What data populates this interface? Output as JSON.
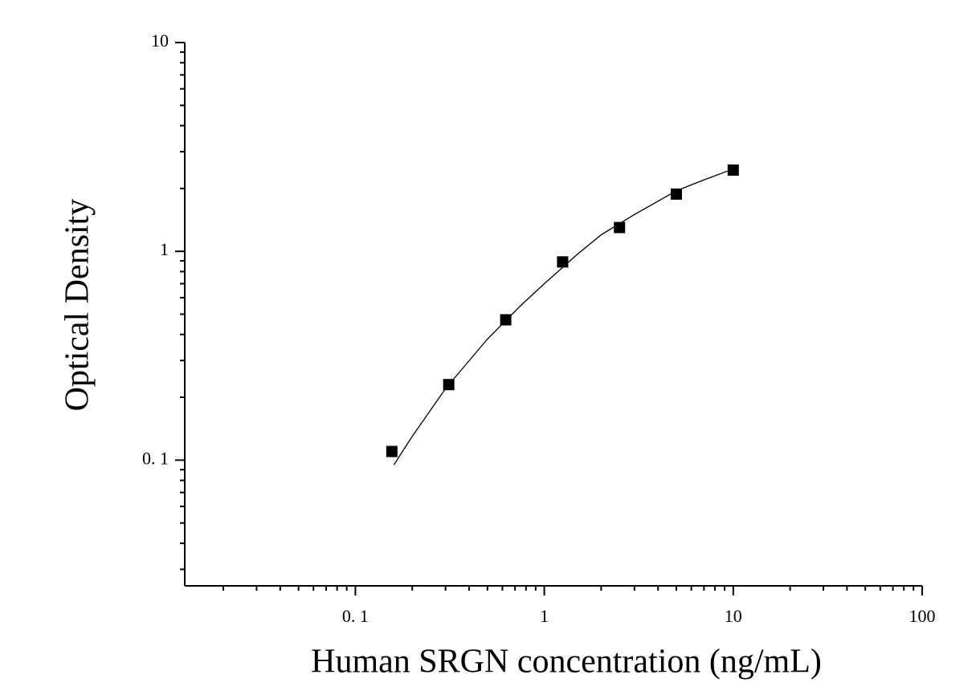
{
  "chart_data": {
    "type": "scatter",
    "x_label": "Human SRGN concentration (ng/mL)",
    "y_label": "Optical Density",
    "log_x": true,
    "log_y": true,
    "xlim": [
      0.0125,
      100
    ],
    "ylim": [
      0.025,
      10
    ],
    "xticks": [
      {
        "value": 0.1,
        "label": "0. 1"
      },
      1,
      10,
      100
    ],
    "yticks": [
      {
        "value": 0.1,
        "label": "0. 1"
      },
      1,
      10
    ],
    "xminorticks": [
      0.02,
      0.03,
      0.04,
      0.05,
      0.06,
      0.07,
      0.08,
      0.09,
      0.2,
      0.3,
      0.4,
      0.5,
      0.6,
      0.7,
      0.8,
      0.9,
      2,
      3,
      4,
      5,
      6,
      7,
      8,
      9,
      20,
      30,
      40,
      50,
      60,
      70,
      80,
      90
    ],
    "yminorticks": [
      0.03,
      0.04,
      0.05,
      0.06,
      0.07,
      0.08,
      0.09,
      0.2,
      0.3,
      0.4,
      0.5,
      0.6,
      0.7,
      0.8,
      0.9,
      2,
      3,
      4,
      5,
      6,
      7,
      8,
      9
    ],
    "series": [
      {
        "color": "#000000",
        "x": [
          0.156,
          0.312,
          0.625,
          1.25,
          2.5,
          5,
          10
        ],
        "values": [
          0.11,
          0.23,
          0.47,
          0.89,
          1.3,
          1.88,
          2.45
        ]
      },
      {
        "color": "#000000",
        "line": true,
        "x": [
          0.16,
          0.2,
          0.3,
          0.5,
          0.75,
          1,
          1.5,
          2,
          3,
          5,
          7,
          10
        ],
        "values": [
          0.095,
          0.13,
          0.22,
          0.38,
          0.55,
          0.7,
          0.97,
          1.2,
          1.5,
          1.95,
          2.2,
          2.48
        ]
      }
    ]
  }
}
